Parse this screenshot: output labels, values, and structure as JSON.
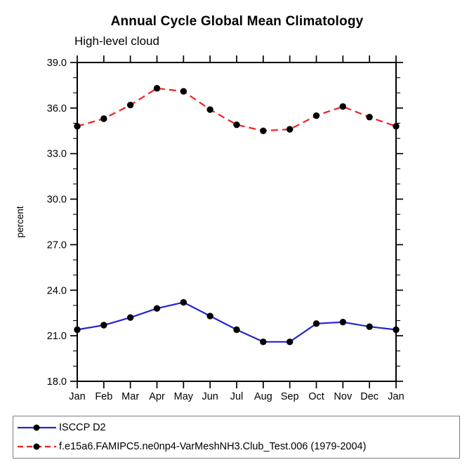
{
  "page": {
    "background": "#ffffff",
    "axis_color": "#000000",
    "legend_border_color": "#7d7d7d"
  },
  "chart_data": {
    "type": "line",
    "title": "Annual Cycle Global Mean Climatology",
    "subtitle": "High-level cloud",
    "xlabel": "",
    "ylabel": "percent",
    "categories": [
      "Jan",
      "Feb",
      "Mar",
      "Apr",
      "May",
      "Jun",
      "Jul",
      "Aug",
      "Sep",
      "Oct",
      "Nov",
      "Dec",
      "Jan"
    ],
    "ylim": [
      18.0,
      39.0
    ],
    "ytick_major_interval": 3.0,
    "ytick_minor_interval": 1.0,
    "ytick_labels": [
      "18.0",
      "21.0",
      "24.0",
      "27.0",
      "30.0",
      "33.0",
      "36.0",
      "39.0"
    ],
    "grid": false,
    "legend_position": "bottom-left-box",
    "series": [
      {
        "name": "ISCCP D2",
        "color": "#2424d0",
        "style": "solid",
        "marker": "circle",
        "marker_color": "#000000",
        "values": [
          21.4,
          21.7,
          22.2,
          22.8,
          23.2,
          22.3,
          21.4,
          20.6,
          20.6,
          21.8,
          21.9,
          21.6,
          21.4
        ]
      },
      {
        "name": "f.e15a6.FAMIPC5.ne0np4-VarMeshNH3.Club_Test.006 (1979-2004)",
        "color": "#f42020",
        "style": "dashed",
        "marker": "circle",
        "marker_color": "#000000",
        "values": [
          34.8,
          35.3,
          36.2,
          37.3,
          37.1,
          35.9,
          34.9,
          34.5,
          34.6,
          35.5,
          36.1,
          35.4,
          34.8
        ]
      }
    ]
  }
}
